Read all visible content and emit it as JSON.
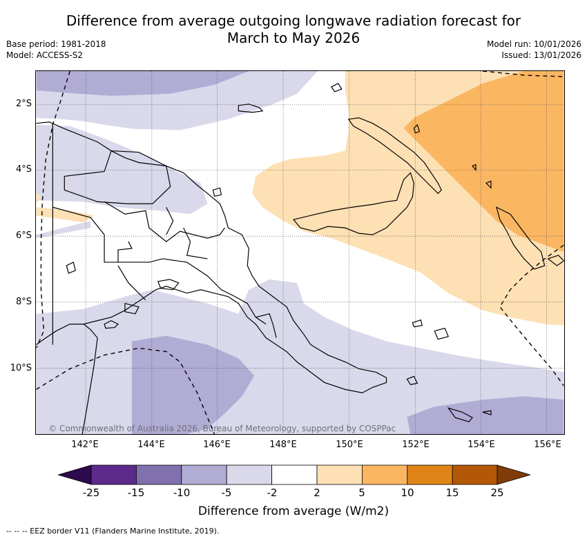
{
  "header": {
    "title_line1": "Difference from average outgoing longwave radiation forecast for",
    "title_line2": "March to May 2026",
    "base_period": "Base period: 1981-2018",
    "model": "Model: ACCESS-S2",
    "model_run": "Model run: 10/01/2026",
    "issued": "Issued: 13/01/2026"
  },
  "map": {
    "region": "Papua New Guinea",
    "lat_labels": [
      "2°S",
      "4°S",
      "6°S",
      "8°S",
      "10°S"
    ],
    "lon_labels": [
      "142°E",
      "144°E",
      "146°E",
      "148°E",
      "150°E",
      "152°E",
      "154°E",
      "156°E"
    ],
    "copyright": "© Commonwealth of Australia 2026, Bureau of Meteorology, supported by COSPPac"
  },
  "colorbar": {
    "ticks": [
      "-25",
      "-15",
      "-10",
      "-5",
      "-2",
      "2",
      "5",
      "10",
      "15",
      "25"
    ],
    "colors": [
      "#2d0a4e",
      "#5c2a8a",
      "#8070ad",
      "#b1acd4",
      "#d9d9eb",
      "#ffffff",
      "#fde0b4",
      "#fbb662",
      "#e08418",
      "#b35806",
      "#7f3b08"
    ],
    "title": "Difference from average (W/m2)"
  },
  "legend": {
    "eez": "--  --  -- EEZ border V11 (Flanders Marine Institute, 2019)."
  }
}
